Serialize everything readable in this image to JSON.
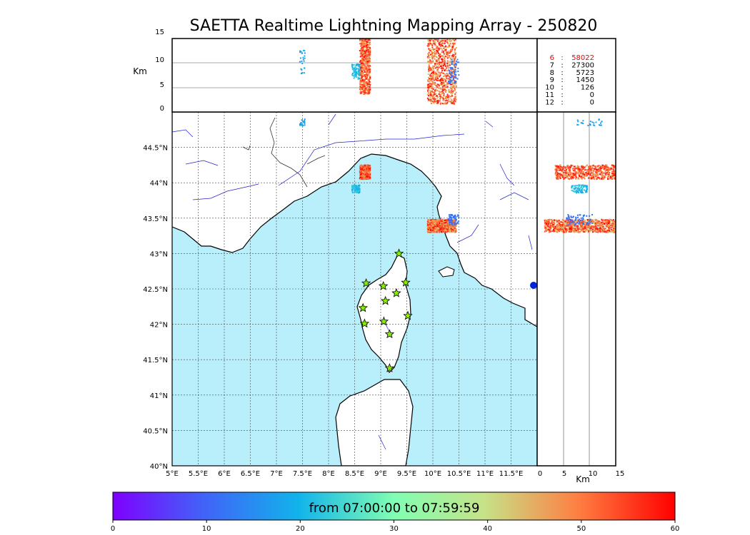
{
  "title": "SAETTA Realtime Lightning Mapping Array - 250820",
  "altitude_panel": {
    "ylabel": "Km",
    "yticks": [
      "15",
      "10",
      "5",
      "0"
    ]
  },
  "side_panel": {
    "xlabel": "Km",
    "xticks": [
      "0",
      "5",
      "10",
      "15"
    ]
  },
  "map": {
    "lon_ticks": [
      "5°E",
      "5.5°E",
      "6°E",
      "6.5°E",
      "7°E",
      "7.5°E",
      "8°E",
      "8.5°E",
      "9°E",
      "9.5°E",
      "10°E",
      "10.5°E",
      "11°E",
      "11.5°E"
    ],
    "lat_ticks": [
      "44.5°N",
      "44°N",
      "43.5°N",
      "43°N",
      "42.5°N",
      "42°N",
      "41.5°N",
      "41°N",
      "40.5°N",
      "40°N"
    ],
    "lon_range": [
      5,
      12
    ],
    "lat_range": [
      40,
      45
    ],
    "sea_color": "#b9eefb",
    "land_color": "#ffffff",
    "coast_color": "#000000",
    "river_color": "#2222cc",
    "grid": true,
    "stations": [
      [
        9.35,
        43.0
      ],
      [
        8.72,
        42.58
      ],
      [
        9.05,
        42.54
      ],
      [
        9.48,
        42.59
      ],
      [
        9.3,
        42.44
      ],
      [
        9.09,
        42.33
      ],
      [
        8.66,
        42.23
      ],
      [
        9.52,
        42.12
      ],
      [
        8.69,
        42.01
      ],
      [
        9.06,
        42.04
      ],
      [
        9.17,
        41.86
      ],
      [
        9.17,
        41.38
      ]
    ],
    "station_color": "#88ee00"
  },
  "stations_table": [
    {
      "n": "6",
      "count": "58022",
      "highlight": true
    },
    {
      "n": "7",
      "count": "27300",
      "highlight": false
    },
    {
      "n": "8",
      "count": "5723",
      "highlight": false
    },
    {
      "n": "9",
      "count": "1450",
      "highlight": false
    },
    {
      "n": "10",
      "count": "126",
      "highlight": false
    },
    {
      "n": "11",
      "count": "0",
      "highlight": false
    },
    {
      "n": "12",
      "count": "0",
      "highlight": false
    }
  ],
  "colorbar": {
    "label": "from 07:00:00 to 07:59:59",
    "ticks": [
      "0",
      "10",
      "20",
      "30",
      "40",
      "50",
      "60"
    ],
    "range": [
      0,
      60
    ]
  },
  "lightning_clusters": [
    {
      "lon": [
        8.6,
        8.8
      ],
      "lat": [
        44.05,
        44.25
      ],
      "alt": [
        3,
        15
      ],
      "minutes": [
        45,
        60
      ],
      "n": 600
    },
    {
      "lon": [
        8.45,
        8.6
      ],
      "lat": [
        43.85,
        43.97
      ],
      "alt": [
        6,
        9
      ],
      "minutes": [
        18,
        24
      ],
      "n": 90
    },
    {
      "lon": [
        9.9,
        10.45
      ],
      "lat": [
        43.3,
        43.48
      ],
      "alt": [
        1,
        15
      ],
      "minutes": [
        42,
        60
      ],
      "n": 900
    },
    {
      "lon": [
        10.3,
        10.5
      ],
      "lat": [
        43.4,
        43.55
      ],
      "alt": [
        5,
        10
      ],
      "minutes": [
        10,
        15
      ],
      "n": 60
    },
    {
      "lon": [
        7.45,
        7.55
      ],
      "lat": [
        44.8,
        44.9
      ],
      "alt": [
        7,
        12
      ],
      "minutes": [
        16,
        20
      ],
      "n": 25
    }
  ]
}
